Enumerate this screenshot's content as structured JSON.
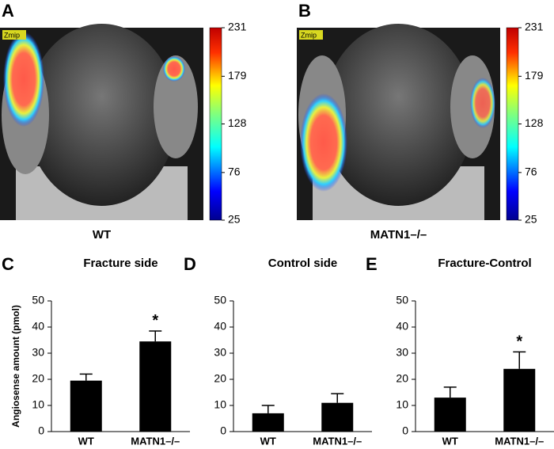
{
  "images": [
    {
      "letter": "A",
      "overlay_label": "Zmip",
      "caption": "WT",
      "colorbar_ticks": [
        25,
        76,
        128,
        179,
        231
      ]
    },
    {
      "letter": "B",
      "overlay_label": "Zmip",
      "caption": "MATN1–/–",
      "colorbar_ticks": [
        25,
        76,
        128,
        179,
        231
      ]
    }
  ],
  "chart_data": [
    {
      "type": "bar",
      "letter": "C",
      "title": "Fracture side",
      "ylabel": "Angiosense amount (pmol)",
      "categories": [
        "WT",
        "MATN1–/–"
      ],
      "values": [
        19.5,
        34.5
      ],
      "errors": [
        2.5,
        4
      ],
      "significance": [
        null,
        "*"
      ],
      "color": "#000000",
      "ylim": [
        0,
        50
      ],
      "yticks": [
        0,
        10,
        20,
        30,
        40,
        50
      ]
    },
    {
      "type": "bar",
      "letter": "D",
      "title": "Control side",
      "categories": [
        "WT",
        "MATN1–/–"
      ],
      "values": [
        7,
        11
      ],
      "errors": [
        3,
        3.5
      ],
      "significance": [
        null,
        null
      ],
      "color": "#000000",
      "ylim": [
        0,
        50
      ],
      "yticks": [
        0,
        10,
        20,
        30,
        40,
        50
      ]
    },
    {
      "type": "bar",
      "letter": "E",
      "title": "Fracture-Control",
      "categories": [
        "WT",
        "MATN1–/–"
      ],
      "values": [
        13,
        24
      ],
      "errors": [
        4,
        6.5
      ],
      "significance": [
        null,
        "*"
      ],
      "color": "#000000",
      "ylim": [
        0,
        50
      ],
      "yticks": [
        0,
        10,
        20,
        30,
        40,
        50
      ]
    }
  ]
}
